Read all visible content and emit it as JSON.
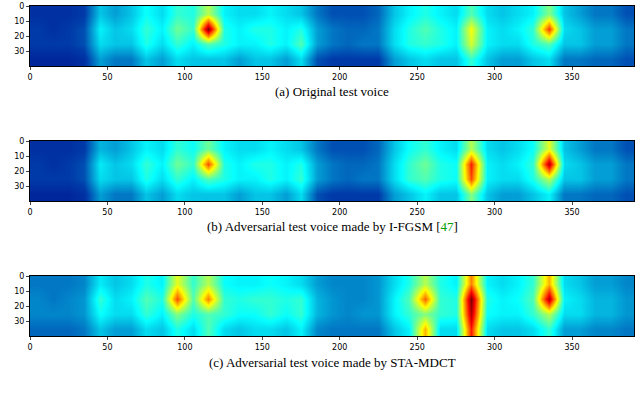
{
  "chart_data": [
    {
      "type": "heatmap",
      "caption": "(a) Original test voice",
      "x": [
        5,
        15,
        25,
        35,
        45,
        55,
        65,
        75,
        85,
        95,
        105,
        115,
        125,
        135,
        145,
        155,
        165,
        175,
        185,
        195,
        205,
        215,
        225,
        235,
        245,
        255,
        265,
        275,
        285,
        295,
        305,
        315,
        325,
        335,
        345,
        355,
        365,
        375,
        385
      ],
      "y": [
        5,
        15,
        25,
        35
      ],
      "z": [
        [
          0.1,
          0.1,
          0.1,
          0.12,
          0.3,
          0.25,
          0.3,
          0.38,
          0.33,
          0.42,
          0.4,
          0.55,
          0.36,
          0.33,
          0.33,
          0.36,
          0.33,
          0.3,
          0.2,
          0.15,
          0.15,
          0.15,
          0.18,
          0.3,
          0.36,
          0.4,
          0.36,
          0.33,
          0.45,
          0.33,
          0.3,
          0.33,
          0.36,
          0.5,
          0.3,
          0.25,
          0.2,
          0.2,
          0.15
        ],
        [
          0.12,
          0.1,
          0.12,
          0.15,
          0.36,
          0.3,
          0.33,
          0.42,
          0.36,
          0.48,
          0.42,
          1.0,
          0.4,
          0.36,
          0.4,
          0.4,
          0.36,
          0.4,
          0.25,
          0.2,
          0.18,
          0.18,
          0.2,
          0.33,
          0.4,
          0.45,
          0.4,
          0.36,
          0.62,
          0.36,
          0.33,
          0.36,
          0.42,
          0.82,
          0.33,
          0.3,
          0.25,
          0.25,
          0.2
        ],
        [
          0.12,
          0.12,
          0.12,
          0.15,
          0.33,
          0.3,
          0.3,
          0.4,
          0.33,
          0.42,
          0.36,
          0.45,
          0.4,
          0.36,
          0.36,
          0.4,
          0.36,
          0.45,
          0.25,
          0.2,
          0.18,
          0.2,
          0.2,
          0.33,
          0.4,
          0.42,
          0.4,
          0.36,
          0.58,
          0.36,
          0.33,
          0.33,
          0.4,
          0.45,
          0.3,
          0.3,
          0.25,
          0.25,
          0.2
        ],
        [
          0.08,
          0.08,
          0.08,
          0.1,
          0.25,
          0.2,
          0.2,
          0.3,
          0.25,
          0.33,
          0.3,
          0.3,
          0.3,
          0.25,
          0.3,
          0.3,
          0.25,
          0.33,
          0.15,
          0.12,
          0.12,
          0.12,
          0.12,
          0.25,
          0.3,
          0.33,
          0.3,
          0.3,
          0.42,
          0.3,
          0.25,
          0.25,
          0.3,
          0.33,
          0.2,
          0.2,
          0.18,
          0.18,
          0.15
        ]
      ],
      "xlim": [
        0,
        390
      ],
      "ylim": [
        40,
        0
      ],
      "xticks": [
        0,
        50,
        100,
        150,
        200,
        250,
        300,
        350
      ],
      "yticks": [
        0,
        10,
        20,
        30
      ],
      "zlim": [
        0,
        1
      ]
    },
    {
      "type": "heatmap",
      "caption": "(b) Adversarial test voice made by I-FGSM [47]",
      "x": [
        5,
        15,
        25,
        35,
        45,
        55,
        65,
        75,
        85,
        95,
        105,
        115,
        125,
        135,
        145,
        155,
        165,
        175,
        185,
        195,
        205,
        215,
        225,
        235,
        245,
        255,
        265,
        275,
        285,
        295,
        305,
        315,
        325,
        335,
        345,
        355,
        365,
        375,
        385
      ],
      "y": [
        5,
        15,
        25,
        35
      ],
      "z": [
        [
          0.1,
          0.1,
          0.1,
          0.12,
          0.28,
          0.25,
          0.3,
          0.36,
          0.33,
          0.42,
          0.38,
          0.48,
          0.36,
          0.33,
          0.33,
          0.36,
          0.33,
          0.3,
          0.2,
          0.15,
          0.15,
          0.15,
          0.18,
          0.3,
          0.38,
          0.42,
          0.36,
          0.33,
          0.55,
          0.33,
          0.3,
          0.33,
          0.38,
          0.6,
          0.3,
          0.25,
          0.2,
          0.2,
          0.15
        ],
        [
          0.12,
          0.1,
          0.12,
          0.15,
          0.35,
          0.3,
          0.33,
          0.42,
          0.36,
          0.48,
          0.42,
          0.8,
          0.4,
          0.36,
          0.4,
          0.4,
          0.36,
          0.4,
          0.25,
          0.2,
          0.18,
          0.18,
          0.2,
          0.33,
          0.42,
          0.48,
          0.4,
          0.38,
          0.85,
          0.36,
          0.33,
          0.36,
          0.42,
          0.95,
          0.33,
          0.3,
          0.25,
          0.25,
          0.2
        ],
        [
          0.12,
          0.12,
          0.12,
          0.15,
          0.33,
          0.3,
          0.3,
          0.4,
          0.33,
          0.42,
          0.36,
          0.45,
          0.4,
          0.36,
          0.36,
          0.4,
          0.36,
          0.42,
          0.25,
          0.2,
          0.18,
          0.2,
          0.2,
          0.33,
          0.42,
          0.45,
          0.4,
          0.38,
          0.8,
          0.36,
          0.33,
          0.33,
          0.4,
          0.55,
          0.3,
          0.3,
          0.25,
          0.25,
          0.2
        ],
        [
          0.08,
          0.08,
          0.08,
          0.1,
          0.25,
          0.2,
          0.2,
          0.3,
          0.25,
          0.33,
          0.3,
          0.3,
          0.3,
          0.25,
          0.3,
          0.3,
          0.25,
          0.33,
          0.15,
          0.12,
          0.12,
          0.12,
          0.12,
          0.25,
          0.3,
          0.36,
          0.3,
          0.3,
          0.5,
          0.3,
          0.25,
          0.25,
          0.3,
          0.36,
          0.2,
          0.2,
          0.18,
          0.18,
          0.15
        ]
      ],
      "xlim": [
        0,
        390
      ],
      "ylim": [
        40,
        0
      ],
      "xticks": [
        0,
        50,
        100,
        150,
        200,
        250,
        300,
        350
      ],
      "yticks": [
        0,
        10,
        20,
        30
      ],
      "zlim": [
        0,
        1
      ]
    },
    {
      "type": "heatmap",
      "caption": "(c) Adversarial test voice made by STA-MDCT",
      "x": [
        5,
        15,
        25,
        35,
        45,
        55,
        65,
        75,
        85,
        95,
        105,
        115,
        125,
        135,
        145,
        155,
        165,
        175,
        185,
        195,
        205,
        215,
        225,
        235,
        245,
        255,
        265,
        275,
        285,
        295,
        305,
        315,
        325,
        335,
        345,
        355,
        365,
        375,
        385
      ],
      "y": [
        5,
        15,
        25,
        35
      ],
      "z": [
        [
          0.2,
          0.2,
          0.2,
          0.22,
          0.35,
          0.3,
          0.33,
          0.4,
          0.36,
          0.6,
          0.42,
          0.55,
          0.38,
          0.36,
          0.36,
          0.38,
          0.36,
          0.33,
          0.25,
          0.22,
          0.22,
          0.22,
          0.24,
          0.33,
          0.4,
          0.55,
          0.4,
          0.36,
          0.75,
          0.36,
          0.33,
          0.36,
          0.42,
          0.7,
          0.33,
          0.3,
          0.25,
          0.25,
          0.22
        ],
        [
          0.22,
          0.2,
          0.22,
          0.24,
          0.42,
          0.33,
          0.36,
          0.45,
          0.4,
          0.8,
          0.45,
          0.75,
          0.42,
          0.4,
          0.42,
          0.42,
          0.4,
          0.42,
          0.28,
          0.24,
          0.22,
          0.22,
          0.24,
          0.36,
          0.45,
          0.78,
          0.42,
          0.4,
          1.0,
          0.4,
          0.36,
          0.38,
          0.45,
          0.95,
          0.36,
          0.33,
          0.28,
          0.28,
          0.24
        ],
        [
          0.22,
          0.22,
          0.22,
          0.24,
          0.38,
          0.33,
          0.33,
          0.42,
          0.36,
          0.5,
          0.4,
          0.45,
          0.42,
          0.38,
          0.38,
          0.42,
          0.38,
          0.42,
          0.28,
          0.24,
          0.22,
          0.24,
          0.24,
          0.36,
          0.42,
          0.5,
          0.42,
          0.4,
          0.95,
          0.38,
          0.36,
          0.36,
          0.42,
          0.55,
          0.33,
          0.33,
          0.28,
          0.28,
          0.24
        ],
        [
          0.18,
          0.18,
          0.18,
          0.2,
          0.3,
          0.25,
          0.25,
          0.33,
          0.3,
          0.4,
          0.33,
          0.45,
          0.33,
          0.3,
          0.33,
          0.33,
          0.3,
          0.36,
          0.22,
          0.2,
          0.2,
          0.2,
          0.2,
          0.3,
          0.36,
          0.7,
          0.33,
          0.33,
          0.85,
          0.33,
          0.3,
          0.3,
          0.33,
          0.42,
          0.25,
          0.25,
          0.22,
          0.22,
          0.2
        ]
      ],
      "xlim": [
        0,
        390
      ],
      "ylim": [
        40,
        0
      ],
      "xticks": [
        0,
        50,
        100,
        150,
        200,
        250,
        300,
        350
      ],
      "yticks": [
        0,
        10,
        20,
        30
      ],
      "zlim": [
        0,
        1
      ]
    }
  ]
}
